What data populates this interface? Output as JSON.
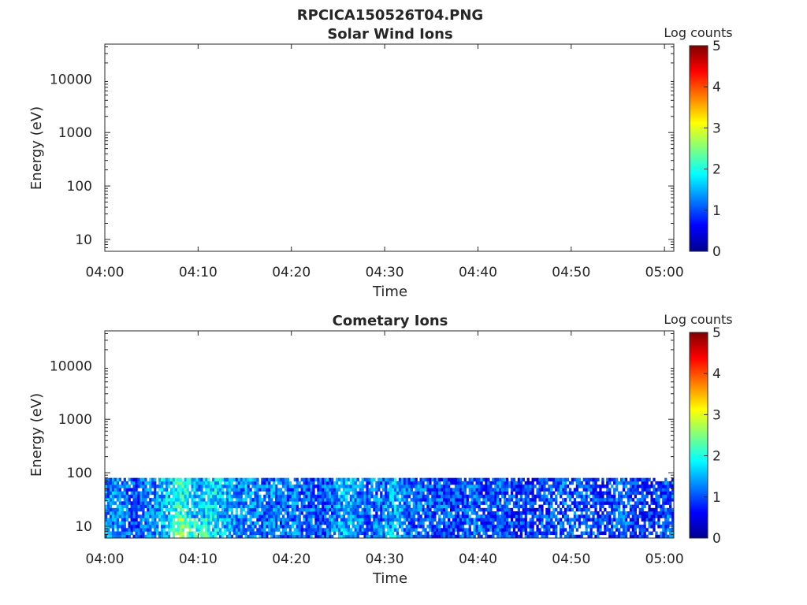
{
  "figure": {
    "title": "RPCICA150526T04.PNG"
  },
  "colormap": {
    "name": "jet",
    "stops": [
      "#00008f",
      "#0000ff",
      "#0080ff",
      "#00ffff",
      "#80ff80",
      "#ffff00",
      "#ff8000",
      "#ff0000",
      "#800000"
    ]
  },
  "chart_data": [
    {
      "type": "heatmap",
      "title": "Solar Wind Ions",
      "xlabel": "Time",
      "ylabel": "Energy (eV)",
      "x_tick_labels": [
        "04:00",
        "04:10",
        "04:20",
        "04:30",
        "04:40",
        "04:50",
        "05:00"
      ],
      "x_tick_minutes": [
        0,
        10,
        20,
        30,
        40,
        50,
        60
      ],
      "xlim_minutes": [
        0,
        61
      ],
      "y_scale": "log",
      "ylim": [
        6,
        45000
      ],
      "y_tick_labels": [
        "10",
        "100",
        "1000",
        "10000"
      ],
      "y_tick_values": [
        10,
        100,
        1000,
        10000
      ],
      "colorbar": {
        "label": "Log counts",
        "range": [
          0,
          5
        ],
        "tick_labels": [
          "0",
          "1",
          "2",
          "3",
          "4",
          "5"
        ]
      },
      "data": "empty"
    },
    {
      "type": "heatmap",
      "title": "Cometary Ions",
      "xlabel": "Time",
      "ylabel": "Energy (eV)",
      "x_tick_labels": [
        "04:00",
        "04:10",
        "04:20",
        "04:30",
        "04:40",
        "04:50",
        "05:00"
      ],
      "x_tick_minutes": [
        0,
        10,
        20,
        30,
        40,
        50,
        60
      ],
      "xlim_minutes": [
        0,
        61
      ],
      "y_scale": "log",
      "ylim": [
        6,
        45000
      ],
      "y_tick_labels": [
        "10",
        "100",
        "1000",
        "10000"
      ],
      "y_tick_values": [
        10,
        100,
        1000,
        10000
      ],
      "colorbar": {
        "label": "Log counts",
        "range": [
          0,
          5
        ],
        "tick_labels": [
          "0",
          "1",
          "2",
          "3",
          "4",
          "5"
        ]
      },
      "energy_range_eV": [
        6,
        80
      ],
      "time_profile": {
        "minutes": [
          0,
          1,
          2,
          3,
          4,
          5,
          6,
          7,
          8,
          9,
          10,
          11,
          12,
          13,
          14,
          15,
          16,
          17,
          18,
          19,
          20,
          21,
          22,
          23,
          24,
          25,
          26,
          27,
          28,
          29,
          30,
          31,
          32,
          33,
          34,
          35,
          36,
          37,
          38,
          39,
          40,
          41,
          42,
          43,
          44,
          45,
          46,
          47,
          48,
          49,
          50,
          51,
          52,
          53,
          54,
          55,
          56,
          57,
          58,
          59,
          60,
          61
        ],
        "mean_log_counts": [
          1.3,
          1.4,
          1.2,
          1.0,
          1.2,
          1.3,
          1.6,
          1.7,
          2.2,
          1.8,
          1.4,
          1.9,
          1.7,
          1.5,
          1.3,
          1.4,
          1.3,
          1.2,
          1.3,
          1.1,
          1.2,
          1.1,
          1.2,
          1.0,
          1.2,
          1.4,
          1.6,
          1.3,
          1.2,
          1.2,
          1.3,
          1.6,
          1.3,
          1.1,
          1.2,
          1.0,
          1.1,
          1.0,
          1.0,
          1.2,
          1.1,
          1.0,
          1.1,
          1.0,
          0.9,
          1.0,
          0.9,
          1.0,
          1.1,
          1.2,
          1.0,
          1.1,
          1.0,
          0.9,
          0.9,
          1.2,
          1.0,
          0.9,
          0.8,
          0.8,
          1.1,
          1.0
        ]
      }
    }
  ]
}
